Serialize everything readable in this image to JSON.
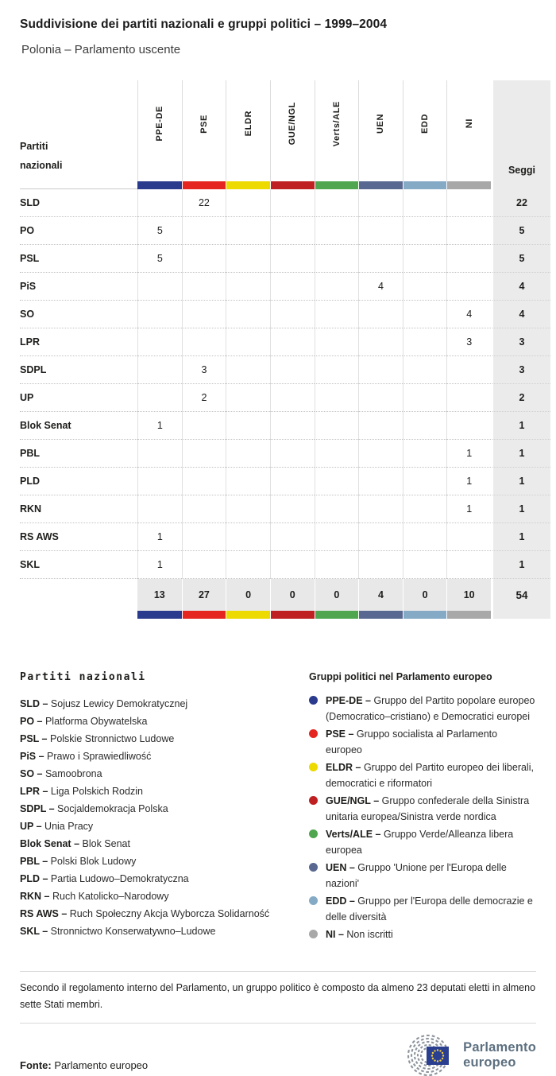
{
  "title": "Suddivisione dei partiti nazionali e gruppi politici – 1999–2004",
  "subtitle": "Polonia – Parlamento uscente",
  "table": {
    "row_header_label": "Partiti\nnazionali",
    "seats_label": "Seggi",
    "groups": [
      {
        "label": "PPE-DE",
        "color": "#2a3a8c"
      },
      {
        "label": "PSE",
        "color": "#e52620"
      },
      {
        "label": "ELDR",
        "color": "#edda00"
      },
      {
        "label": "GUE/NGL",
        "color": "#bf2021"
      },
      {
        "label": "Verts/ALE",
        "color": "#4fa64f"
      },
      {
        "label": "UEN",
        "color": "#586890"
      },
      {
        "label": "EDD",
        "color": "#84aac5"
      },
      {
        "label": "NI",
        "color": "#a8a8a8"
      }
    ],
    "rows": [
      {
        "party": "SLD",
        "cells": [
          "",
          "22",
          "",
          "",
          "",
          "",
          "",
          ""
        ],
        "seats": "22"
      },
      {
        "party": "PO",
        "cells": [
          "5",
          "",
          "",
          "",
          "",
          "",
          "",
          ""
        ],
        "seats": "5"
      },
      {
        "party": "PSL",
        "cells": [
          "5",
          "",
          "",
          "",
          "",
          "",
          "",
          ""
        ],
        "seats": "5"
      },
      {
        "party": "PiS",
        "cells": [
          "",
          "",
          "",
          "",
          "",
          "4",
          "",
          ""
        ],
        "seats": "4"
      },
      {
        "party": "SO",
        "cells": [
          "",
          "",
          "",
          "",
          "",
          "",
          "",
          "4"
        ],
        "seats": "4"
      },
      {
        "party": "LPR",
        "cells": [
          "",
          "",
          "",
          "",
          "",
          "",
          "",
          "3"
        ],
        "seats": "3"
      },
      {
        "party": "SDPL",
        "cells": [
          "",
          "3",
          "",
          "",
          "",
          "",
          "",
          ""
        ],
        "seats": "3"
      },
      {
        "party": "UP",
        "cells": [
          "",
          "2",
          "",
          "",
          "",
          "",
          "",
          ""
        ],
        "seats": "2"
      },
      {
        "party": "Blok Senat",
        "cells": [
          "1",
          "",
          "",
          "",
          "",
          "",
          "",
          ""
        ],
        "seats": "1"
      },
      {
        "party": "PBL",
        "cells": [
          "",
          "",
          "",
          "",
          "",
          "",
          "",
          "1"
        ],
        "seats": "1"
      },
      {
        "party": "PLD",
        "cells": [
          "",
          "",
          "",
          "",
          "",
          "",
          "",
          "1"
        ],
        "seats": "1"
      },
      {
        "party": "RKN",
        "cells": [
          "",
          "",
          "",
          "",
          "",
          "",
          "",
          "1"
        ],
        "seats": "1"
      },
      {
        "party": "RS AWS",
        "cells": [
          "1",
          "",
          "",
          "",
          "",
          "",
          "",
          ""
        ],
        "seats": "1"
      },
      {
        "party": "SKL",
        "cells": [
          "1",
          "",
          "",
          "",
          "",
          "",
          "",
          ""
        ],
        "seats": "1"
      }
    ],
    "totals": {
      "cells": [
        "13",
        "27",
        "0",
        "0",
        "0",
        "4",
        "0",
        "10"
      ],
      "seats": "54"
    }
  },
  "legend_parties": {
    "title": "Partiti nazionali",
    "sep": "–",
    "items": [
      {
        "abbr": "SLD",
        "name": "Sojusz Lewicy Demokratycznej"
      },
      {
        "abbr": "PO",
        "name": "Platforma Obywatelska"
      },
      {
        "abbr": "PSL",
        "name": "Polskie Stronnictwo Ludowe"
      },
      {
        "abbr": "PiS",
        "name": "Prawo i Sprawiedliwość"
      },
      {
        "abbr": "SO",
        "name": "Samoobrona"
      },
      {
        "abbr": "LPR",
        "name": "Liga Polskich Rodzin"
      },
      {
        "abbr": "SDPL",
        "name": "Socjaldemokracja Polska"
      },
      {
        "abbr": "UP",
        "name": "Unia Pracy"
      },
      {
        "abbr": "Blok Senat",
        "name": "Blok Senat"
      },
      {
        "abbr": "PBL",
        "name": "Polski Blok Ludowy"
      },
      {
        "abbr": "PLD",
        "name": "Partia Ludowo–Demokratyczna"
      },
      {
        "abbr": "RKN",
        "name": "Ruch Katolicko–Narodowy"
      },
      {
        "abbr": "RS AWS",
        "name": "Ruch Społeczny Akcja Wyborcza Solidarność"
      },
      {
        "abbr": "SKL",
        "name": "Stronnictwo Konserwatywno–Ludowe"
      }
    ]
  },
  "legend_groups": {
    "title": "Gruppi politici nel Parlamento europeo",
    "sep": "–",
    "items": [
      {
        "abbr": "PPE-DE",
        "color": "#2a3a8c",
        "name": "Gruppo del Partito popolare europeo (Democratico–cristiano) e Democratici europei"
      },
      {
        "abbr": "PSE",
        "color": "#e52620",
        "name": "Gruppo socialista al Parlamento europeo"
      },
      {
        "abbr": "ELDR",
        "color": "#edda00",
        "name": "Gruppo del Partito europeo dei liberali, democratici e riformatori"
      },
      {
        "abbr": "GUE/NGL",
        "color": "#bf2021",
        "name": "Gruppo confederale della Sinistra unitaria europea/Sinistra verde nordica"
      },
      {
        "abbr": "Verts/ALE",
        "color": "#4fa64f",
        "name": "Gruppo Verde/Alleanza libera europea"
      },
      {
        "abbr": "UEN",
        "color": "#586890",
        "name": "Gruppo 'Unione per l'Europa delle nazioni'"
      },
      {
        "abbr": "EDD",
        "color": "#84aac5",
        "name": "Gruppo per l'Europa delle democrazie e delle diversità"
      },
      {
        "abbr": "NI",
        "color": "#a8a8a8",
        "name": "Non iscritti"
      }
    ]
  },
  "footnote": "Secondo il regolamento interno del Parlamento, un gruppo politico è composto da almeno 23 deputati eletti in almeno sette Stati membri.",
  "source": {
    "label": "Fonte:",
    "value": "Parlamento europeo"
  },
  "logo": {
    "line1": "Parlamento",
    "line2": "europeo"
  },
  "chart_data": {
    "type": "table",
    "title": "Suddivisione dei partiti nazionali e gruppi politici – 1999–2004",
    "subtitle": "Polonia – Parlamento uscente",
    "columns": [
      "PPE-DE",
      "PSE",
      "ELDR",
      "GUE/NGL",
      "Verts/ALE",
      "UEN",
      "EDD",
      "NI",
      "Seggi"
    ],
    "rows": [
      {
        "party": "SLD",
        "values": [
          0,
          22,
          0,
          0,
          0,
          0,
          0,
          0
        ],
        "seats": 22
      },
      {
        "party": "PO",
        "values": [
          5,
          0,
          0,
          0,
          0,
          0,
          0,
          0
        ],
        "seats": 5
      },
      {
        "party": "PSL",
        "values": [
          5,
          0,
          0,
          0,
          0,
          0,
          0,
          0
        ],
        "seats": 5
      },
      {
        "party": "PiS",
        "values": [
          0,
          0,
          0,
          0,
          0,
          4,
          0,
          0
        ],
        "seats": 4
      },
      {
        "party": "SO",
        "values": [
          0,
          0,
          0,
          0,
          0,
          0,
          0,
          4
        ],
        "seats": 4
      },
      {
        "party": "LPR",
        "values": [
          0,
          0,
          0,
          0,
          0,
          0,
          0,
          3
        ],
        "seats": 3
      },
      {
        "party": "SDPL",
        "values": [
          0,
          3,
          0,
          0,
          0,
          0,
          0,
          0
        ],
        "seats": 3
      },
      {
        "party": "UP",
        "values": [
          0,
          2,
          0,
          0,
          0,
          0,
          0,
          0
        ],
        "seats": 2
      },
      {
        "party": "Blok Senat",
        "values": [
          1,
          0,
          0,
          0,
          0,
          0,
          0,
          0
        ],
        "seats": 1
      },
      {
        "party": "PBL",
        "values": [
          0,
          0,
          0,
          0,
          0,
          0,
          0,
          1
        ],
        "seats": 1
      },
      {
        "party": "PLD",
        "values": [
          0,
          0,
          0,
          0,
          0,
          0,
          0,
          1
        ],
        "seats": 1
      },
      {
        "party": "RKN",
        "values": [
          0,
          0,
          0,
          0,
          0,
          0,
          0,
          1
        ],
        "seats": 1
      },
      {
        "party": "RS AWS",
        "values": [
          1,
          0,
          0,
          0,
          0,
          0,
          0,
          0
        ],
        "seats": 1
      },
      {
        "party": "SKL",
        "values": [
          1,
          0,
          0,
          0,
          0,
          0,
          0,
          0
        ],
        "seats": 1
      }
    ],
    "totals": {
      "values": [
        13,
        27,
        0,
        0,
        0,
        4,
        0,
        10
      ],
      "seats": 54
    }
  }
}
